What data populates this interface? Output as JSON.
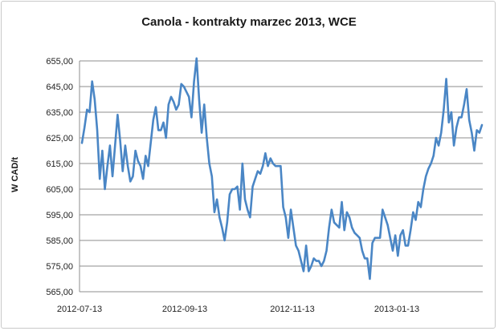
{
  "colors": {
    "line": "#4a86c5",
    "grid": "#8c8c8c",
    "axis": "#8c8c8c"
  },
  "chart_data": {
    "type": "line",
    "title": "Canola - kontrakty marzec 2013, WCE",
    "ylabel": "W CAD/t",
    "xlabel": "",
    "ylim": [
      565,
      655
    ],
    "grid": true,
    "yticks": [
      "565,00",
      "575,00",
      "585,00",
      "595,00",
      "605,00",
      "615,00",
      "625,00",
      "635,00",
      "645,00",
      "655,00"
    ],
    "xticks": [
      "2012-07-13",
      "2012-09-13",
      "2012-11-13",
      "2013-01-13"
    ],
    "series": [
      {
        "values": [
          623,
          629,
          636,
          635,
          647,
          640,
          628,
          609,
          620,
          605,
          614,
          622,
          610,
          622,
          634,
          624,
          612,
          622,
          614,
          608,
          610,
          620,
          616,
          614,
          609,
          618,
          614,
          623,
          632,
          637,
          628,
          628,
          631,
          625,
          638,
          641,
          639,
          636,
          638,
          646,
          645,
          643,
          641,
          633,
          647,
          656,
          640,
          627,
          638,
          625,
          615,
          610,
          596,
          601,
          594,
          590,
          585,
          592,
          603,
          605,
          605,
          606,
          597,
          615,
          601,
          597,
          594,
          606,
          609,
          612,
          611,
          614,
          619,
          614,
          617,
          615,
          614,
          614,
          614,
          598,
          594,
          586,
          597,
          590,
          583,
          581,
          577,
          573,
          583,
          573,
          575,
          578,
          577,
          577,
          575,
          577,
          581,
          590,
          597,
          592,
          591,
          590,
          600,
          589,
          596,
          594,
          590,
          588,
          587,
          586,
          581,
          578,
          578,
          570,
          584,
          586,
          586,
          586,
          597,
          594,
          591,
          586,
          581,
          587,
          579,
          587,
          589,
          583,
          583,
          589,
          596,
          593,
          600,
          598,
          605,
          610,
          613,
          615,
          618,
          625,
          622,
          627,
          636,
          648,
          631,
          635,
          622,
          629,
          633,
          633,
          638,
          644,
          632,
          627,
          620,
          628,
          627,
          630
        ]
      }
    ]
  }
}
